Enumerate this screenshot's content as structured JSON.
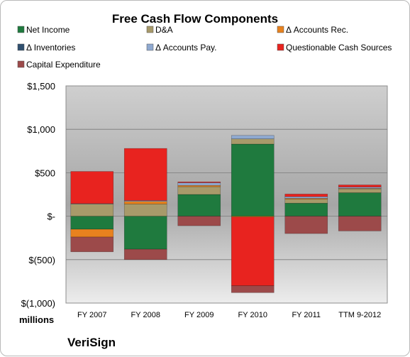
{
  "chart_data": {
    "type": "bar",
    "stacked": true,
    "title": "Free Cash Flow Components",
    "unit_label": "millions",
    "company": "VeriSign",
    "categories": [
      "FY 2007",
      "FY 2008",
      "FY 2009",
      "FY 2010",
      "FY 2011",
      "TTM 9-2012"
    ],
    "y_ticks": [
      1500,
      1000,
      500,
      0,
      -500,
      -1000
    ],
    "y_tick_labels": [
      "$1,500",
      "$1,000",
      "$500",
      "$-",
      "$(500)",
      "$(1,000)"
    ],
    "ylim": [
      -1000,
      1500
    ],
    "grid": true,
    "legend_position": "top",
    "series": [
      {
        "name": "Net Income",
        "color": "#1f7a3e",
        "values": [
          -150,
          -380,
          250,
          830,
          150,
          270
        ]
      },
      {
        "name": "D&A",
        "color": "#a89a6a",
        "values": [
          140,
          140,
          90,
          60,
          45,
          45
        ]
      },
      {
        "name": "Δ Accounts Rec.",
        "color": "#e8821e",
        "values": [
          -90,
          30,
          15,
          -10,
          10,
          5
        ]
      },
      {
        "name": "Δ Inventories",
        "color": "#2f4f6f",
        "values": [
          0,
          0,
          0,
          0,
          0,
          0
        ]
      },
      {
        "name": "Δ Accounts Pay.",
        "color": "#8fa9d0",
        "values": [
          5,
          10,
          30,
          40,
          20,
          15
        ]
      },
      {
        "name": "Questionable Cash Sources",
        "color": "#e8231f",
        "values": [
          370,
          600,
          10,
          -790,
          30,
          25
        ]
      },
      {
        "name": "Capital Expenditure",
        "color": "#9c4a4a",
        "values": [
          -170,
          -120,
          -110,
          -80,
          -200,
          -170
        ]
      }
    ]
  }
}
